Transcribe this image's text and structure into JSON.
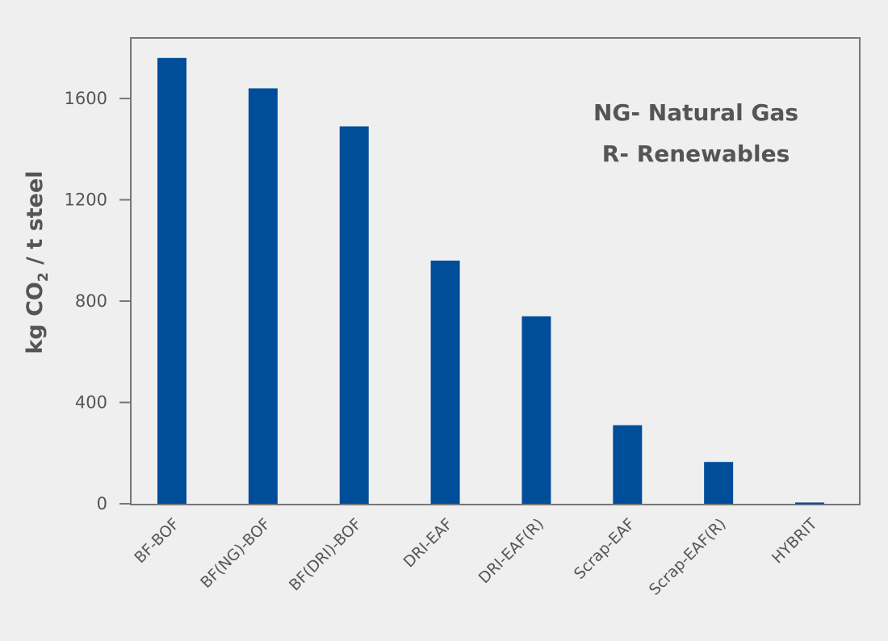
{
  "chart_data": {
    "type": "bar",
    "categories": [
      "BF-BOF",
      "BF(NG)-BOF",
      "BF(DRI)-BOF",
      "DRI-EAF",
      "DRI-EAF(R)",
      "Scrap-EAF",
      "Scrap-EAF(R)",
      "HYBRIT"
    ],
    "values": [
      1760,
      1640,
      1490,
      960,
      740,
      310,
      165,
      5
    ],
    "ylabel": "kg CO2 / t steel",
    "yticks": [
      0,
      400,
      800,
      1200,
      1600
    ],
    "ylim": [
      0,
      1800
    ],
    "grid": false,
    "annotations": [
      "NG- Natural Gas",
      "R- Renewables"
    ],
    "colors": {
      "bar": "#004d99",
      "frame": "#777777",
      "text": "#555555",
      "background": "#efefef"
    }
  }
}
